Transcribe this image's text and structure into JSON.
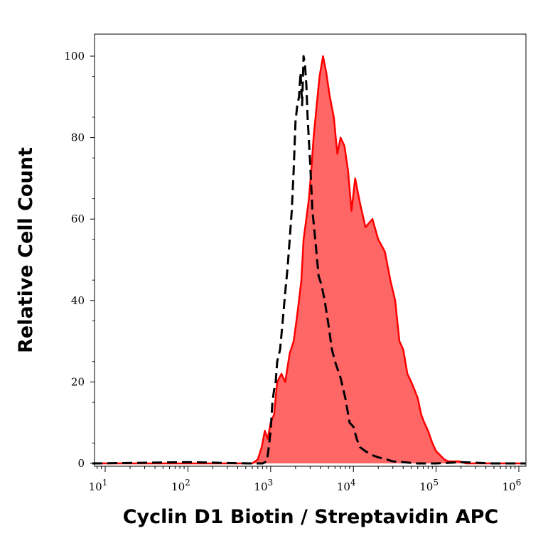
{
  "chart_data": {
    "type": "area",
    "xlabel": "Cyclin D1 Biotin / Streptavidin APC",
    "ylabel": "Relative Cell Count",
    "x_scale": "log",
    "xlim": [
      7,
      1200000
    ],
    "ylim": [
      0,
      100
    ],
    "x_ticks": [
      {
        "value": 10,
        "base": "10",
        "exp": "1"
      },
      {
        "value": 100,
        "base": "10",
        "exp": "2"
      },
      {
        "value": 1000,
        "base": "10",
        "exp": "3"
      },
      {
        "value": 10000,
        "base": "10",
        "exp": "4"
      },
      {
        "value": 100000,
        "base": "10",
        "exp": "5"
      },
      {
        "value": 1000000,
        "base": "10",
        "exp": "6"
      }
    ],
    "y_ticks": [
      {
        "value": 0,
        "label": "0"
      },
      {
        "value": 20,
        "label": "20"
      },
      {
        "value": 40,
        "label": "40"
      },
      {
        "value": 60,
        "label": "60"
      },
      {
        "value": 80,
        "label": "80"
      },
      {
        "value": 100,
        "label": "100"
      }
    ],
    "series": [
      {
        "style": "filled",
        "color": "#ff0000",
        "fill": "#ff6666",
        "x": [
          7,
          600,
          700,
          780,
          850,
          920,
          1000,
          1100,
          1200,
          1350,
          1500,
          1700,
          1900,
          2050,
          2200,
          2350,
          2500,
          2700,
          2900,
          3100,
          3300,
          3600,
          3900,
          4300,
          4700,
          5200,
          5800,
          6400,
          7000,
          7800,
          8600,
          9500,
          10500,
          12000,
          14000,
          17000,
          20000,
          24000,
          28000,
          32000,
          36000,
          40000,
          45000,
          50000,
          55000,
          60000,
          66000,
          72000,
          80000,
          90000,
          100000,
          112000,
          125000,
          140000,
          160000,
          190000,
          230000,
          280000,
          330000,
          400000,
          500000,
          700000,
          1200000
        ],
        "y": [
          0,
          0,
          1,
          4,
          8,
          6,
          10,
          12,
          20,
          22,
          20,
          27,
          30,
          35,
          40,
          45,
          55,
          60,
          65,
          72,
          80,
          88,
          95,
          100,
          96,
          90,
          85,
          76,
          80,
          78,
          72,
          62,
          70,
          64,
          58,
          60,
          55,
          52,
          45,
          40,
          30,
          28,
          22,
          20,
          18,
          16,
          12,
          10,
          8,
          5,
          3,
          2,
          1,
          0.5,
          0.5,
          0.5,
          0,
          0,
          0,
          0,
          0,
          0,
          0
        ]
      },
      {
        "style": "dashed",
        "color": "#000000",
        "x": [
          7,
          100,
          600,
          700,
          800,
          900,
          950,
          1000,
          1050,
          1100,
          1150,
          1200,
          1300,
          1400,
          1500,
          1600,
          1700,
          1800,
          1900,
          2000,
          2100,
          2200,
          2300,
          2400,
          2500,
          2600,
          2700,
          2800,
          3000,
          3200,
          3500,
          3800,
          4100,
          4500,
          5000,
          5500,
          6000,
          7000,
          8000,
          9000,
          10000,
          11000,
          12000,
          14000,
          17000,
          20000,
          25000,
          30000,
          40000,
          60000,
          100000,
          200000,
          500000,
          1200000
        ],
        "y": [
          0,
          0.3,
          0,
          0,
          0,
          0.5,
          4,
          8,
          15,
          18,
          20,
          25,
          28,
          35,
          42,
          48,
          55,
          62,
          72,
          84,
          88,
          90,
          96,
          88,
          100,
          98,
          93,
          85,
          74,
          62,
          54,
          46,
          44,
          40,
          34,
          28,
          25,
          21,
          16,
          10,
          9,
          6,
          4,
          3,
          2,
          1.5,
          1,
          0.5,
          0.3,
          0,
          0,
          0.3,
          0,
          0
        ]
      }
    ]
  }
}
